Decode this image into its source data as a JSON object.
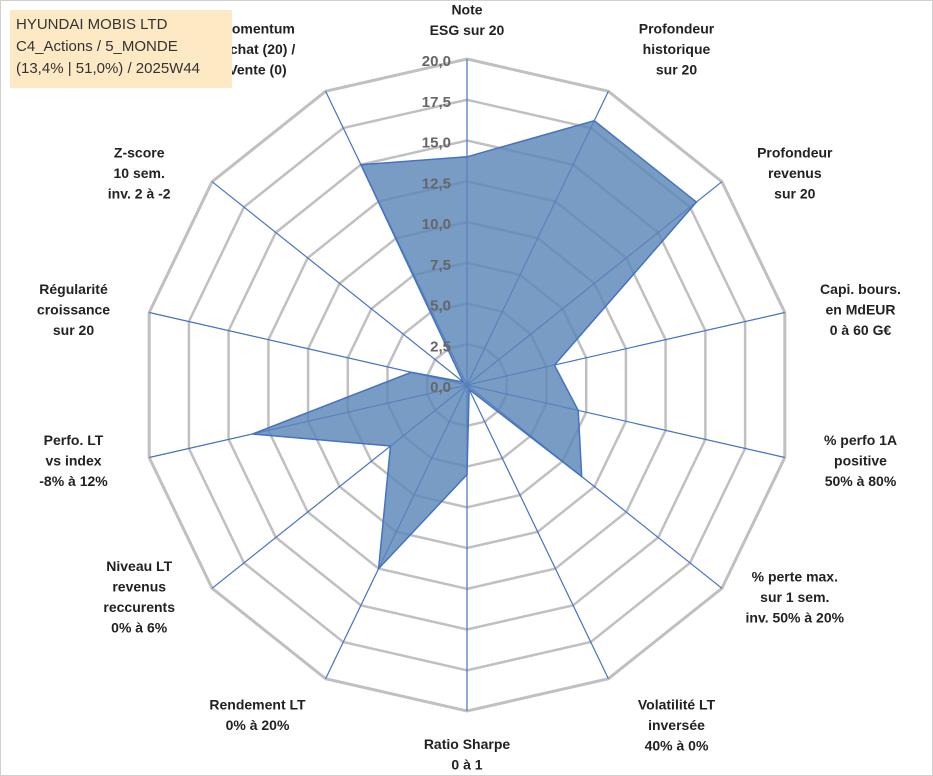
{
  "header": {
    "company": "HYUNDAI MOBIS LTD",
    "category": "C4_Actions / 5_MONDE",
    "stats": "(13,4% | 51,0%) / 2025W44"
  },
  "colors": {
    "fill": "#5b86b8",
    "stroke": "#4472c4",
    "grid": "#c0c0c0",
    "spoke": "#4472c4"
  },
  "chart_data": {
    "type": "radar",
    "title": "HYUNDAI MOBIS LTD",
    "rmin": 0,
    "rmax": 20,
    "ticks": [
      "0,0",
      "2,5",
      "5,0",
      "7,5",
      "10,0",
      "12,5",
      "15,0",
      "17,5",
      "20,0"
    ],
    "axes": [
      {
        "label": [
          "Note",
          "ESG sur 20"
        ],
        "value": 14.0
      },
      {
        "label": [
          "Profondeur",
          "historique",
          "sur 20"
        ],
        "value": 18.0
      },
      {
        "label": [
          "Profondeur",
          "revenus",
          "sur 20"
        ],
        "value": 18.0
      },
      {
        "label": [
          "Capi. bours.",
          "en MdEUR",
          "0 à 60 G€"
        ],
        "value": 5.5
      },
      {
        "label": [
          "% perfo 1A",
          "positive",
          "50% à 80%"
        ],
        "value": 7.0
      },
      {
        "label": [
          "% perte max.",
          "sur 1 sem.",
          "inv. 50% à 20%"
        ],
        "value": 9.0
      },
      {
        "label": [
          "Volatilité LT",
          "inversée",
          "40% à 0%"
        ],
        "value": 0.3
      },
      {
        "label": [
          "Ratio Sharpe",
          "0 à 1"
        ],
        "value": 5.5
      },
      {
        "label": [
          "Rendement LT",
          "0% à 20%"
        ],
        "value": 12.5
      },
      {
        "label": [
          "Niveau LT",
          "revenus",
          "reccurents",
          "0% à 6%"
        ],
        "value": 6.0
      },
      {
        "label": [
          "Perfo. LT",
          "vs index",
          "-8% à 12%"
        ],
        "value": 13.5
      },
      {
        "label": [
          "Régularité",
          "croissance",
          "sur 20"
        ],
        "value": 3.5
      },
      {
        "label": [
          "Z-score",
          "10 sem.",
          "inv. 2 à -2"
        ],
        "value": 0.3
      },
      {
        "label": [
          "Momentum",
          "Achat (20) /",
          "Vente (0)"
        ],
        "value": 15.0
      }
    ]
  }
}
